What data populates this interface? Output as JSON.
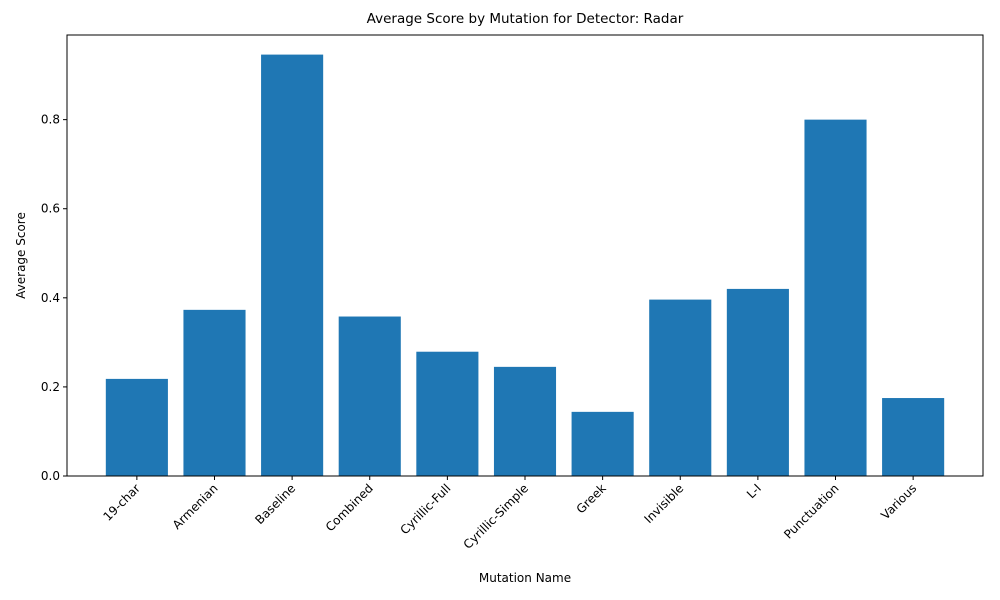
{
  "chart_data": {
    "type": "bar",
    "title": "Average Score by Mutation for Detector: Radar",
    "xlabel": "Mutation Name",
    "ylabel": "Average Score",
    "categories": [
      "19-char",
      "Armenian",
      "Baseline",
      "Combined",
      "Cyrillic-Full",
      "Cyrillic-Simple",
      "Greek",
      "Invisible",
      "L-I",
      "Punctuation",
      "Various"
    ],
    "values": [
      0.218,
      0.373,
      0.946,
      0.358,
      0.279,
      0.245,
      0.144,
      0.396,
      0.42,
      0.8,
      0.175
    ],
    "ylim": [
      0,
      0.99
    ],
    "yticks": [
      0.0,
      0.2,
      0.4,
      0.6,
      0.8
    ],
    "ytick_labels": [
      "0.0",
      "0.2",
      "0.4",
      "0.6",
      "0.8"
    ],
    "bar_color": "#1f77b4",
    "grid": false,
    "legend": false
  }
}
